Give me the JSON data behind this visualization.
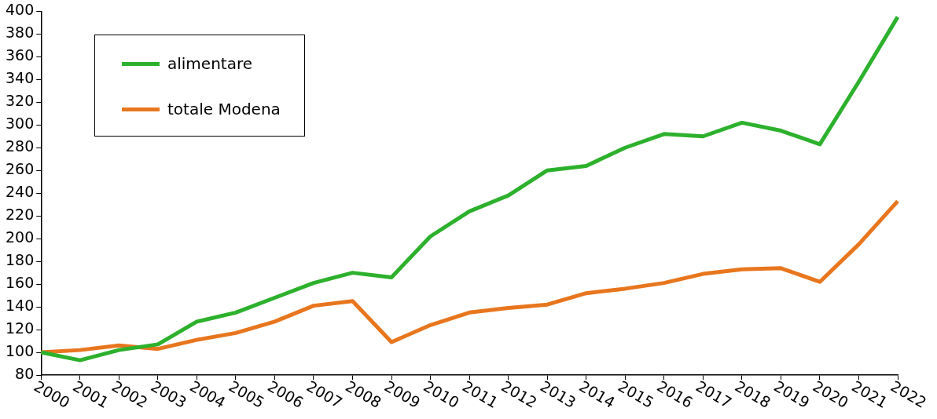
{
  "chart_data": {
    "type": "line",
    "categories": [
      "2000",
      "2001",
      "2002",
      "2003",
      "2004",
      "2005",
      "2006",
      "2007",
      "2008",
      "2009",
      "2010",
      "2011",
      "2012",
      "2013",
      "2014",
      "2015",
      "2016",
      "2017",
      "2018",
      "2019",
      "2020",
      "2021",
      "2022"
    ],
    "series": [
      {
        "name": "alimentare",
        "color": "#2db12d",
        "values": [
          100,
          93,
          102,
          107,
          127,
          135,
          148,
          161,
          170,
          166,
          202,
          224,
          238,
          260,
          264,
          280,
          292,
          290,
          302,
          295,
          283,
          338,
          395
        ]
      },
      {
        "name": "totale Modena",
        "color": "#e8761e",
        "values": [
          100,
          102,
          106,
          103,
          111,
          117,
          127,
          141,
          145,
          109,
          124,
          135,
          139,
          142,
          152,
          156,
          161,
          169,
          173,
          174,
          162,
          195,
          233
        ]
      }
    ],
    "ylim": [
      80,
      400
    ],
    "yticks": [
      80,
      100,
      120,
      140,
      160,
      180,
      200,
      220,
      240,
      260,
      280,
      300,
      320,
      340,
      360,
      380,
      400
    ],
    "grid": false,
    "legend": "top left",
    "marker": "none",
    "line_style": "solid"
  }
}
